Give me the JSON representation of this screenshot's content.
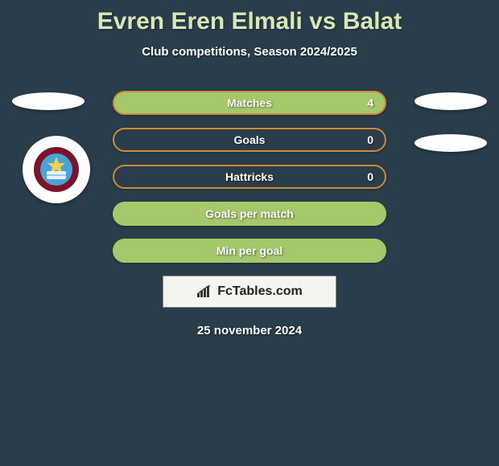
{
  "title": "Evren Eren Elmali vs Balat",
  "subtitle": "Club competitions, Season 2024/2025",
  "date": "25 november 2024",
  "footer_label": "FcTables.com",
  "stats": [
    {
      "label": "Matches",
      "value": "4",
      "fill": "#a5c96a",
      "border": "#d08a3a",
      "show_value": true
    },
    {
      "label": "Goals",
      "value": "0",
      "fill": "transparent",
      "border": "#d08a3a",
      "show_value": true
    },
    {
      "label": "Hattricks",
      "value": "0",
      "fill": "transparent",
      "border": "#d08a3a",
      "show_value": true
    },
    {
      "label": "Goals per match",
      "value": "",
      "fill": "#a5c96a",
      "border": "#a5c96a",
      "show_value": false
    },
    {
      "label": "Min per goal",
      "value": "",
      "fill": "#a5c96a",
      "border": "#a5c96a",
      "show_value": false
    }
  ],
  "badge": {
    "outer": "#7a1426",
    "inner": "#4aa3d8"
  }
}
